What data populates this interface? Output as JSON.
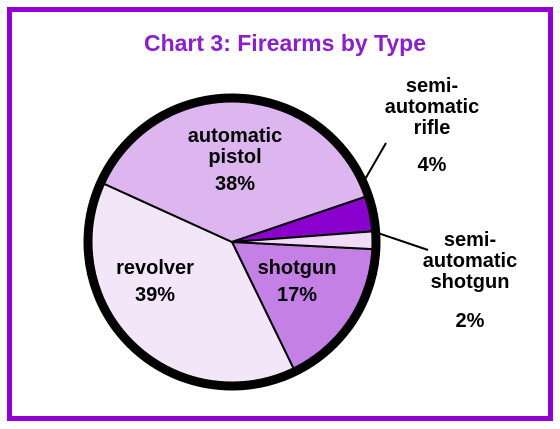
{
  "chart_data": {
    "type": "pie",
    "title": "Chart 3: Firearms by Type",
    "categories": [
      "shotgun",
      "revolver",
      "automatic pistol",
      "semi-automatic rifle",
      "semi-automatic shotgun"
    ],
    "values": [
      17,
      39,
      38,
      4,
      2
    ],
    "value_labels": [
      "17%",
      "39%",
      "38%",
      "4%",
      "2%"
    ],
    "colors": [
      "#c580e6",
      "#f3e6f9",
      "#ddb6ef",
      "#8a00cc",
      "#f0dcf7"
    ]
  }
}
